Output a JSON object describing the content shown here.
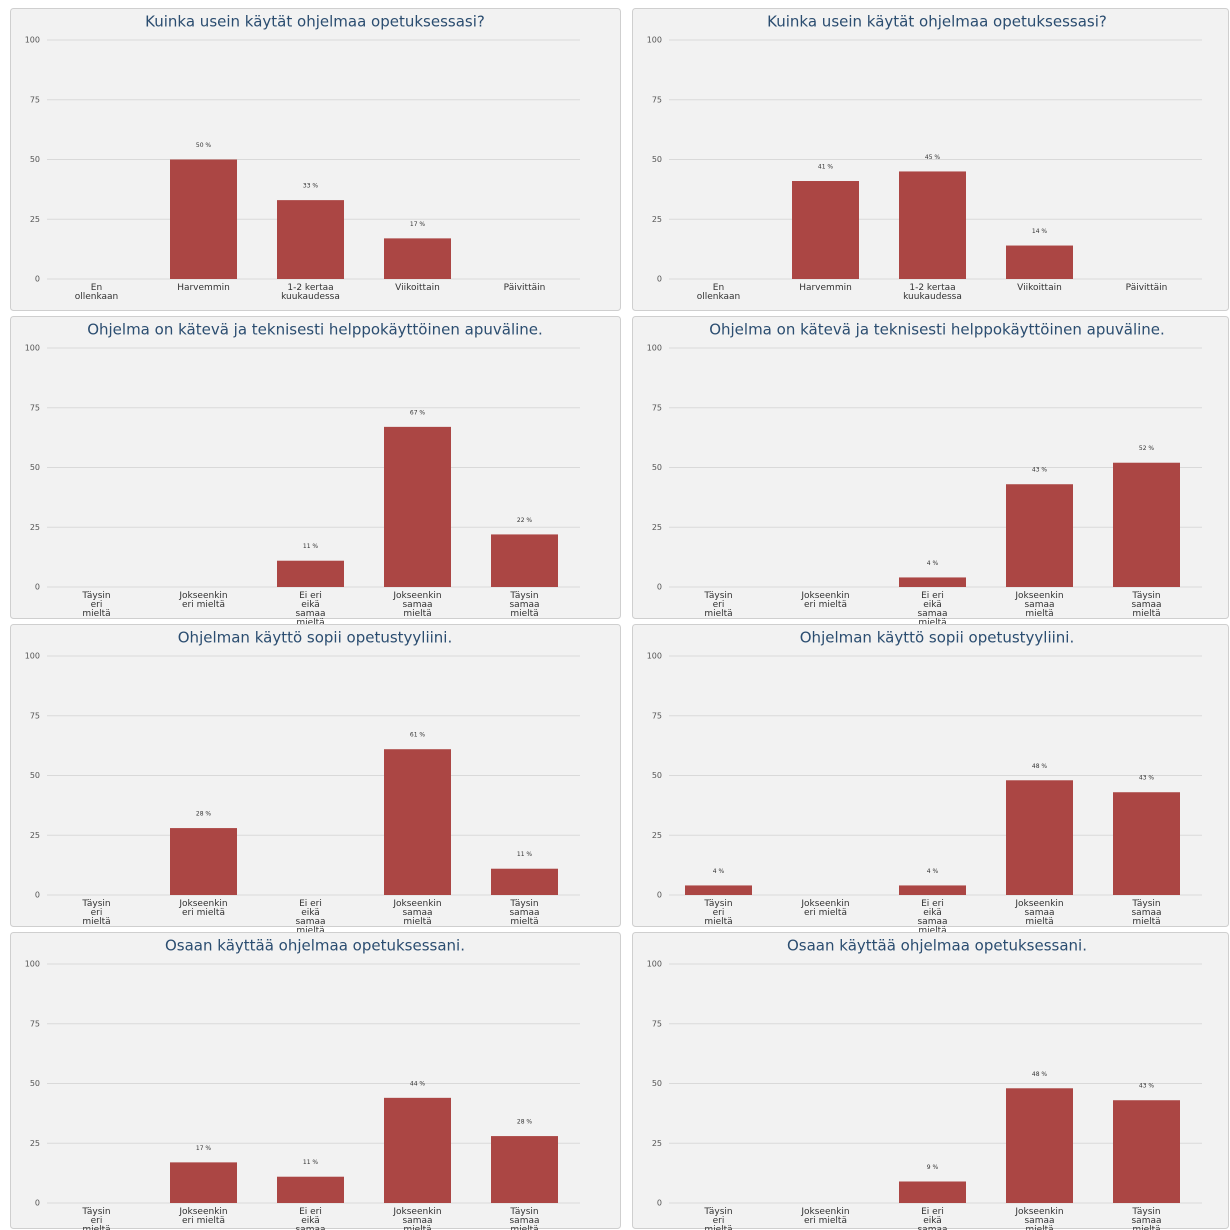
{
  "chart_data": [
    {
      "type": "bar",
      "title": "Kuinka usein käytät ohjelmaa opetuksessasi?",
      "categories": [
        "En\nollenkaan",
        "Harvemmin",
        "1-2 kertaa\nkuukaudessa",
        "Viikoittain",
        "Päivittäin"
      ],
      "values": [
        0,
        50,
        33,
        17,
        0
      ],
      "value_labels": [
        null,
        "50 %",
        "33 %",
        "17 %",
        null
      ],
      "color": "#ab4644",
      "ylim": [
        0,
        100
      ],
      "yticks": [
        0,
        25,
        50,
        75,
        100
      ],
      "grid": true
    },
    {
      "type": "bar",
      "title": "Kuinka usein käytät ohjelmaa opetuksessasi?",
      "categories": [
        "En\nollenkaan",
        "Harvemmin",
        "1-2 kertaa\nkuukaudessa",
        "Viikoittain",
        "Päivittäin"
      ],
      "values": [
        0,
        41,
        45,
        14,
        0
      ],
      "value_labels": [
        null,
        "41 %",
        "45 %",
        "14 %",
        null
      ],
      "color": "#ab4644",
      "ylim": [
        0,
        100
      ],
      "yticks": [
        0,
        25,
        50,
        75,
        100
      ],
      "grid": true
    },
    {
      "type": "bar",
      "title": "Ohjelma on kätevä ja teknisesti helppokäyttöinen apuväline.",
      "categories": [
        "Täysin\neri\nmieltä",
        "Jokseenkin\neri mieltä",
        "Ei eri\neikä\nsamaa\nmieltä",
        "Jokseenkin\nsamaa\nmieltä",
        "Täysin\nsamaa\nmieltä"
      ],
      "values": [
        0,
        0,
        11,
        67,
        22
      ],
      "value_labels": [
        null,
        null,
        "11 %",
        "67 %",
        "22 %"
      ],
      "color": "#ab4644",
      "ylim": [
        0,
        100
      ],
      "yticks": [
        0,
        25,
        50,
        75,
        100
      ],
      "grid": true
    },
    {
      "type": "bar",
      "title": "Ohjelma on kätevä ja teknisesti helppokäyttöinen apuväline.",
      "categories": [
        "Täysin\neri\nmieltä",
        "Jokseenkin\neri mieltä",
        "Ei eri\neikä\nsamaa\nmieltä",
        "Jokseenkin\nsamaa\nmieltä",
        "Täysin\nsamaa\nmieltä"
      ],
      "values": [
        0,
        0,
        4,
        43,
        52
      ],
      "value_labels": [
        null,
        null,
        "4 %",
        "43 %",
        "52 %"
      ],
      "color": "#ab4644",
      "ylim": [
        0,
        100
      ],
      "yticks": [
        0,
        25,
        50,
        75,
        100
      ],
      "grid": true
    },
    {
      "type": "bar",
      "title": "Ohjelman käyttö sopii opetustyyliini.",
      "categories": [
        "Täysin\neri\nmieltä",
        "Jokseenkin\neri mieltä",
        "Ei eri\neikä\nsamaa\nmieltä",
        "Jokseenkin\nsamaa\nmieltä",
        "Täysin\nsamaa\nmieltä"
      ],
      "values": [
        0,
        28,
        0,
        61,
        11
      ],
      "value_labels": [
        null,
        "28 %",
        null,
        "61 %",
        "11 %"
      ],
      "color": "#ab4644",
      "ylim": [
        0,
        100
      ],
      "yticks": [
        0,
        25,
        50,
        75,
        100
      ],
      "grid": true
    },
    {
      "type": "bar",
      "title": "Ohjelman käyttö sopii opetustyyliini.",
      "categories": [
        "Täysin\neri\nmieltä",
        "Jokseenkin\neri mieltä",
        "Ei eri\neikä\nsamaa\nmieltä",
        "Jokseenkin\nsamaa\nmieltä",
        "Täysin\nsamaa\nmieltä"
      ],
      "values": [
        4,
        0,
        4,
        48,
        43
      ],
      "value_labels": [
        "4 %",
        null,
        "4 %",
        "48 %",
        "43 %"
      ],
      "color": "#ab4644",
      "ylim": [
        0,
        100
      ],
      "yticks": [
        0,
        25,
        50,
        75,
        100
      ],
      "grid": true
    },
    {
      "type": "bar",
      "title": "Osaan käyttää ohjelmaa opetuksessani.",
      "categories": [
        "Täysin\neri\nmieltä",
        "Jokseenkin\neri mieltä",
        "Ei eri\neikä\nsamaa\nmieltä",
        "Jokseenkin\nsamaa\nmieltä",
        "Täysin\nsamaa\nmieltä"
      ],
      "values": [
        0,
        17,
        11,
        44,
        28
      ],
      "value_labels": [
        null,
        "17 %",
        "11 %",
        "44 %",
        "28 %"
      ],
      "color": "#ab4644",
      "ylim": [
        0,
        100
      ],
      "yticks": [
        0,
        25,
        50,
        75,
        100
      ],
      "grid": true
    },
    {
      "type": "bar",
      "title": "Osaan käyttää ohjelmaa opetuksessani.",
      "categories": [
        "Täysin\neri\nmieltä",
        "Jokseenkin\neri mieltä",
        "Ei eri\neikä\nsamaa\nmieltä",
        "Jokseenkin\nsamaa\nmieltä",
        "Täysin\nsamaa\nmieltä"
      ],
      "values": [
        0,
        0,
        9,
        48,
        43
      ],
      "value_labels": [
        null,
        null,
        "9 %",
        "48 %",
        "43 %"
      ],
      "color": "#ab4644",
      "ylim": [
        0,
        100
      ],
      "yticks": [
        0,
        25,
        50,
        75,
        100
      ],
      "grid": true
    }
  ]
}
